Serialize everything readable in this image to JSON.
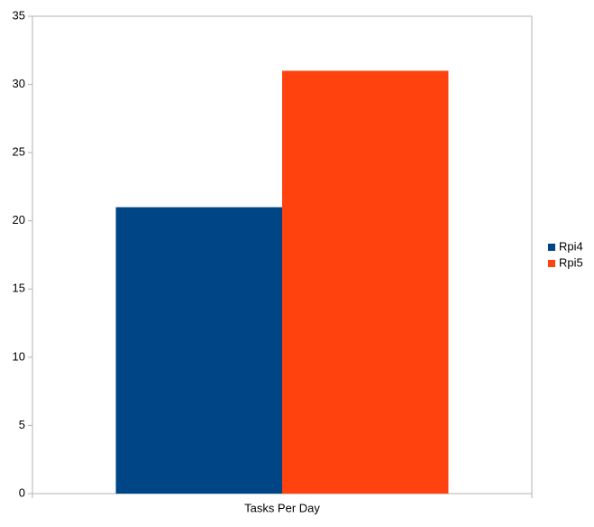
{
  "chart_data": {
    "type": "bar",
    "categories": [
      "Tasks Per Day"
    ],
    "series": [
      {
        "name": "Rpi4",
        "color": "#004586",
        "values": [
          21
        ]
      },
      {
        "name": "Rpi5",
        "color": "#ff420e",
        "values": [
          31
        ]
      }
    ],
    "ylim": [
      0,
      35
    ],
    "yticks": [
      0,
      5,
      10,
      15,
      20,
      25,
      30,
      35
    ],
    "grid": false,
    "legend": "right"
  }
}
